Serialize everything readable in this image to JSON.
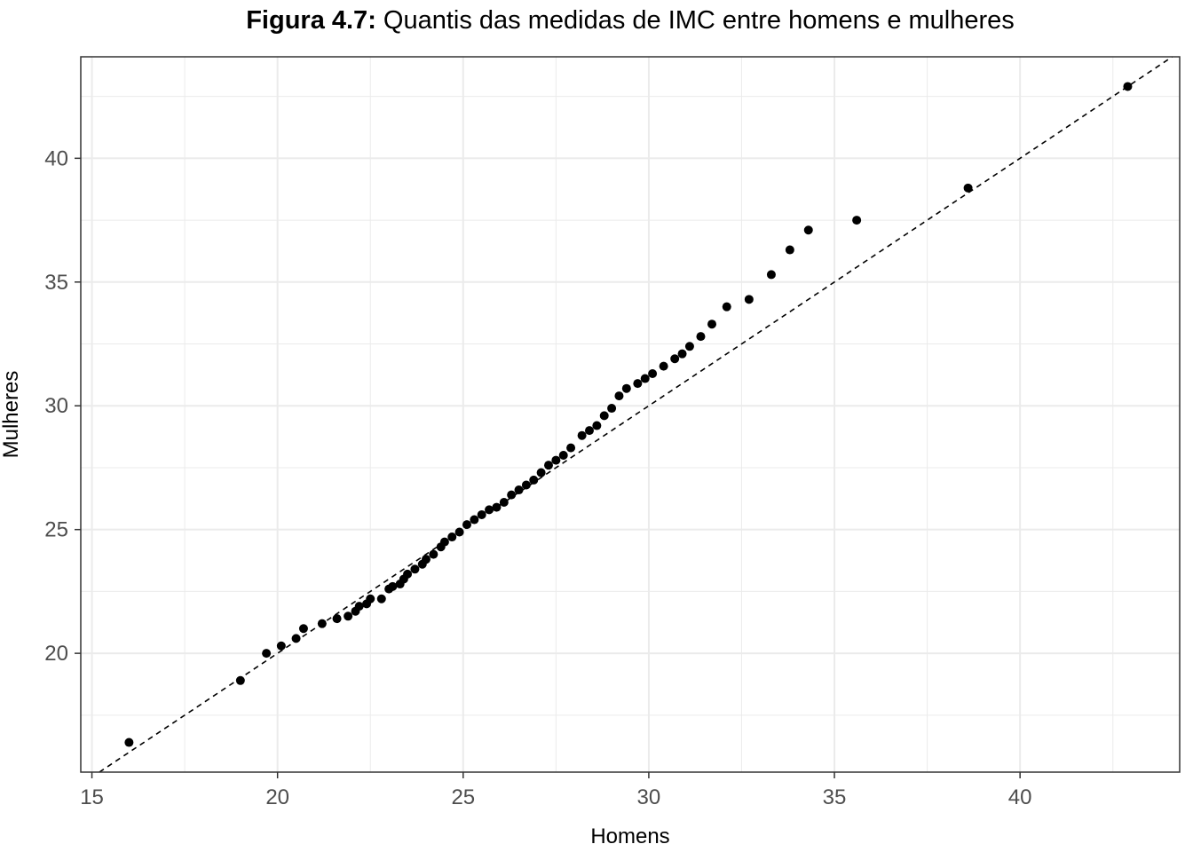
{
  "chart_data": {
    "type": "scatter",
    "title_bold": "Figura 4.7:",
    "title_rest": " Quantis das medidas de IMC entre homens e mulheres",
    "xlabel": "Homens",
    "ylabel": "Mulheres",
    "xlim": [
      14.7,
      44.3
    ],
    "ylim": [
      15.2,
      44.1
    ],
    "x_ticks": [
      15,
      20,
      25,
      30,
      35,
      40
    ],
    "y_ticks": [
      20,
      25,
      30,
      35,
      40
    ],
    "x_tick_labels": [
      "15",
      "20",
      "25",
      "30",
      "35",
      "40"
    ],
    "y_tick_labels": [
      "20",
      "25",
      "30",
      "35",
      "40"
    ],
    "grid": true,
    "reference_line": {
      "style": "dashed",
      "intercept": 0,
      "slope": 1
    },
    "colors": {
      "points": "#000000",
      "grid": "#ebebeb",
      "border": "#333333",
      "tick_label": "#4d4d4d"
    },
    "points": [
      [
        16.0,
        16.4
      ],
      [
        19.0,
        18.9
      ],
      [
        19.7,
        20.0
      ],
      [
        20.1,
        20.3
      ],
      [
        20.5,
        20.6
      ],
      [
        20.7,
        21.0
      ],
      [
        21.2,
        21.2
      ],
      [
        21.6,
        21.4
      ],
      [
        21.9,
        21.5
      ],
      [
        22.1,
        21.7
      ],
      [
        22.2,
        21.9
      ],
      [
        22.4,
        22.0
      ],
      [
        22.5,
        22.2
      ],
      [
        22.8,
        22.2
      ],
      [
        23.0,
        22.6
      ],
      [
        23.1,
        22.7
      ],
      [
        23.3,
        22.8
      ],
      [
        23.4,
        23.0
      ],
      [
        23.5,
        23.2
      ],
      [
        23.7,
        23.4
      ],
      [
        23.9,
        23.6
      ],
      [
        24.0,
        23.8
      ],
      [
        24.2,
        24.0
      ],
      [
        24.4,
        24.3
      ],
      [
        24.5,
        24.5
      ],
      [
        24.7,
        24.7
      ],
      [
        24.9,
        24.9
      ],
      [
        25.1,
        25.2
      ],
      [
        25.3,
        25.4
      ],
      [
        25.5,
        25.6
      ],
      [
        25.7,
        25.8
      ],
      [
        25.9,
        25.9
      ],
      [
        26.1,
        26.1
      ],
      [
        26.3,
        26.4
      ],
      [
        26.5,
        26.6
      ],
      [
        26.7,
        26.8
      ],
      [
        26.9,
        27.0
      ],
      [
        27.1,
        27.3
      ],
      [
        27.3,
        27.6
      ],
      [
        27.5,
        27.8
      ],
      [
        27.7,
        28.0
      ],
      [
        27.9,
        28.3
      ],
      [
        28.2,
        28.8
      ],
      [
        28.4,
        29.0
      ],
      [
        28.6,
        29.2
      ],
      [
        28.8,
        29.6
      ],
      [
        29.0,
        29.9
      ],
      [
        29.2,
        30.4
      ],
      [
        29.4,
        30.7
      ],
      [
        29.7,
        30.9
      ],
      [
        29.9,
        31.1
      ],
      [
        30.1,
        31.3
      ],
      [
        30.4,
        31.6
      ],
      [
        30.7,
        31.9
      ],
      [
        30.9,
        32.1
      ],
      [
        31.1,
        32.4
      ],
      [
        31.4,
        32.8
      ],
      [
        31.7,
        33.3
      ],
      [
        32.1,
        34.0
      ],
      [
        32.7,
        34.3
      ],
      [
        33.3,
        35.3
      ],
      [
        33.8,
        36.3
      ],
      [
        34.3,
        37.1
      ],
      [
        35.6,
        37.5
      ],
      [
        38.6,
        38.8
      ],
      [
        42.9,
        42.9
      ]
    ]
  }
}
